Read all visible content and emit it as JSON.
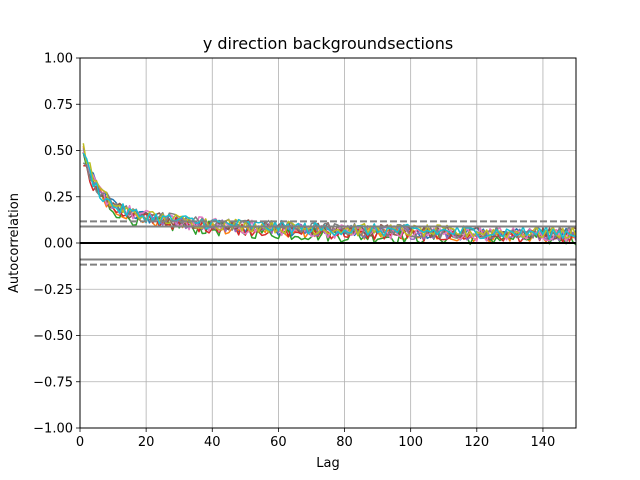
{
  "chart_data": {
    "type": "line",
    "title": "y direction backgroundsections",
    "xlabel": "Lag",
    "ylabel": "Autocorrelation",
    "xlim": [
      0,
      150
    ],
    "ylim": [
      -1.0,
      1.0
    ],
    "grid": true,
    "legend": "none",
    "x_ticks": [
      0,
      20,
      40,
      60,
      80,
      100,
      120,
      140
    ],
    "x_tick_labels": [
      "0",
      "20",
      "40",
      "60",
      "80",
      "100",
      "120",
      "140"
    ],
    "y_ticks": [
      1.0,
      0.75,
      0.5,
      0.25,
      0.0,
      -0.25,
      -0.5,
      -0.75,
      -1.0
    ],
    "y_tick_labels": [
      "1.00",
      "0.75",
      "0.50",
      "0.25",
      "0.00",
      "−0.25",
      "−0.50",
      "−0.75",
      "−1.00"
    ],
    "reference_lines": [
      {
        "y": 0.0,
        "style": "solid",
        "color": "#000000",
        "width": 2
      },
      {
        "y": 0.117,
        "style": "dashed",
        "color": "#808080"
      },
      {
        "y": -0.117,
        "style": "dashed",
        "color": "#808080"
      },
      {
        "y": 0.089,
        "style": "solid",
        "color": "#808080"
      },
      {
        "y": -0.089,
        "style": "solid",
        "color": "#808080"
      }
    ],
    "series": [
      {
        "color": "#1f77b4",
        "start": 0.4,
        "decay": 0.18,
        "floor": 0.04,
        "noise": 0.035
      },
      {
        "color": "#ff7f0e",
        "start": 0.44,
        "decay": 0.2,
        "floor": 0.03,
        "noise": 0.035
      },
      {
        "color": "#2ca02c",
        "start": 0.38,
        "decay": 0.19,
        "floor": 0.02,
        "noise": 0.04
      },
      {
        "color": "#d62728",
        "start": 0.36,
        "decay": 0.18,
        "floor": 0.03,
        "noise": 0.035
      },
      {
        "color": "#9467bd",
        "start": 0.42,
        "decay": 0.21,
        "floor": 0.04,
        "noise": 0.035
      },
      {
        "color": "#8c564b",
        "start": 0.41,
        "decay": 0.2,
        "floor": 0.05,
        "noise": 0.035
      },
      {
        "color": "#e377c2",
        "start": 0.37,
        "decay": 0.17,
        "floor": 0.04,
        "noise": 0.04
      },
      {
        "color": "#7f7f7f",
        "start": 0.39,
        "decay": 0.19,
        "floor": 0.05,
        "noise": 0.035
      },
      {
        "color": "#bcbd22",
        "start": 0.48,
        "decay": 0.22,
        "floor": 0.05,
        "noise": 0.035
      },
      {
        "color": "#17becf",
        "start": 0.43,
        "decay": 0.22,
        "floor": 0.05,
        "noise": 0.035
      }
    ]
  }
}
